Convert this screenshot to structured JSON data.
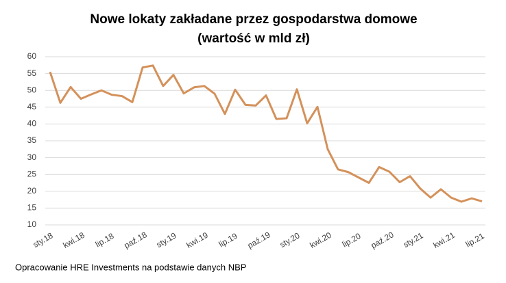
{
  "chart_data": {
    "type": "line",
    "title": "Nowe lokaty zakładane przez gospodarstwa domowe",
    "subtitle": "(wartość w mld zł)",
    "source": "Opracowanie HRE Investments na podstawie danych NBP",
    "categories": [
      "sty.18",
      null,
      null,
      "kwi.18",
      null,
      null,
      "lip.18",
      null,
      null,
      "paź.18",
      null,
      null,
      "sty.19",
      null,
      null,
      "kwi.19",
      null,
      null,
      "lip.19",
      null,
      null,
      "paź.19",
      null,
      null,
      "sty.20",
      null,
      null,
      "kwi.20",
      null,
      null,
      "lip.20",
      null,
      null,
      "paź.20",
      null,
      null,
      "sty.21",
      null,
      null,
      "kwi.21",
      null,
      null,
      "lip.21"
    ],
    "series": [
      {
        "name": "Nowe lokaty",
        "color": "#d4915a",
        "values": [
          55.5,
          46.3,
          51,
          47.5,
          48.8,
          50,
          48.7,
          48.3,
          46.5,
          56.8,
          57.4,
          51.3,
          54.6,
          49.1,
          50.9,
          51.3,
          49,
          43,
          50.2,
          45.7,
          45.5,
          48.5,
          41.5,
          41.7,
          50.3,
          40.2,
          45.1,
          32.5,
          26.5,
          25.7,
          24.1,
          22.5,
          27.2,
          25.8,
          22.7,
          24.5,
          20.8,
          18.1,
          20.6,
          18.1,
          16.9,
          17.9,
          17
        ]
      }
    ],
    "ylim": [
      10,
      60
    ],
    "yticks": [
      10,
      15,
      20,
      25,
      30,
      35,
      40,
      45,
      50,
      55,
      60
    ],
    "grid": true
  }
}
